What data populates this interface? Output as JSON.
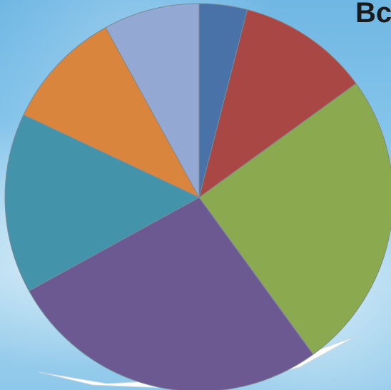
{
  "header": {
    "title_fragment": "Bc"
  },
  "chart_data": {
    "type": "pie",
    "start_angle_deg": 0,
    "direction": "clockwise",
    "title": "",
    "legend": "none",
    "series": [
      {
        "values": [
          4,
          11,
          25,
          27,
          15,
          10,
          8
        ],
        "colors": [
          "#4872a8",
          "#a94744",
          "#8ba94f",
          "#6d5992",
          "#4394ab",
          "#d9853d",
          "#93a9d3"
        ]
      }
    ]
  },
  "colors": {
    "slice_border": "#7a8a95",
    "shadow": "#ffffff"
  }
}
